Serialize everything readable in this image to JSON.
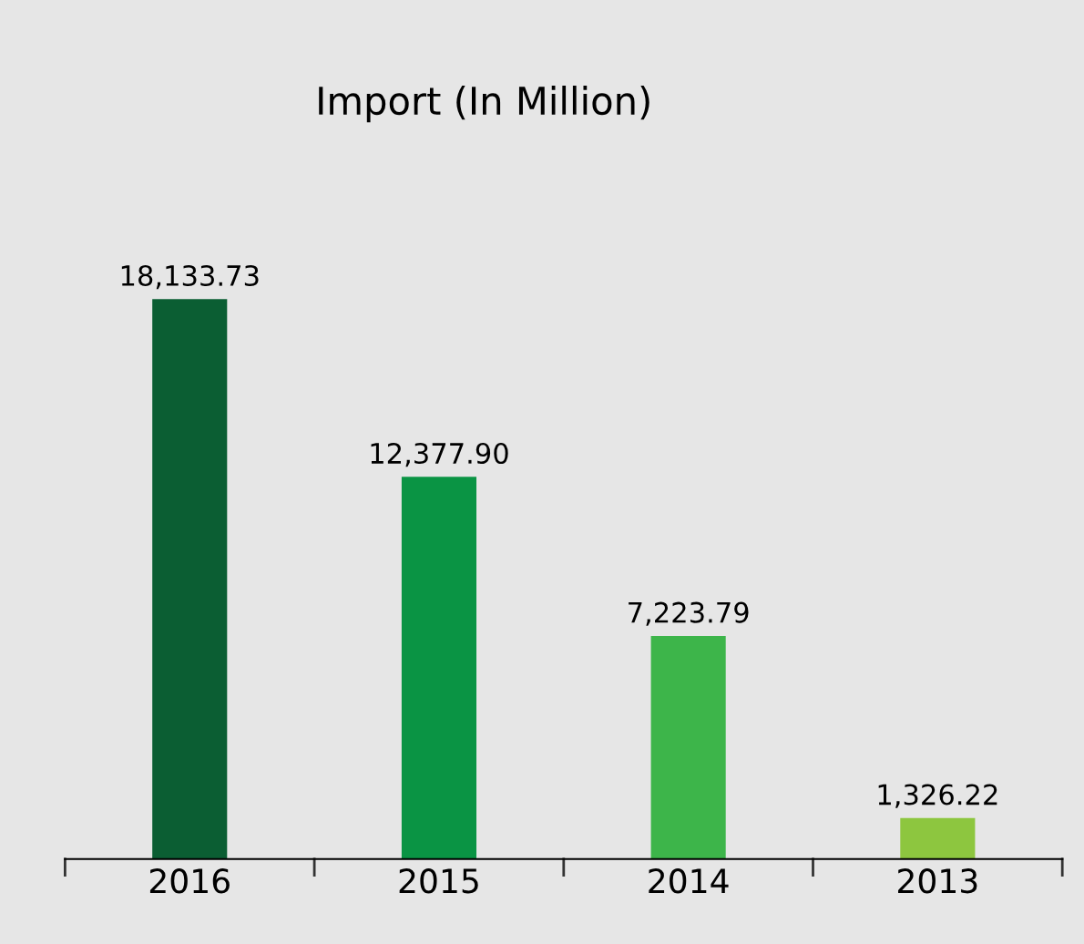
{
  "chart_data": {
    "type": "bar",
    "title": "Import (In Million)",
    "categories": [
      "2016",
      "2015",
      "2014",
      "2013"
    ],
    "values": [
      18133.73,
      12377.9,
      7223.79,
      1326.22
    ],
    "colors": [
      "#0b5e33",
      "#0a9444",
      "#3db54a",
      "#8dc63f"
    ],
    "value_labels": [
      "18,133.73",
      "12,377.90",
      "7,223.79",
      "1,326.22"
    ],
    "grid": false,
    "legend": false
  }
}
